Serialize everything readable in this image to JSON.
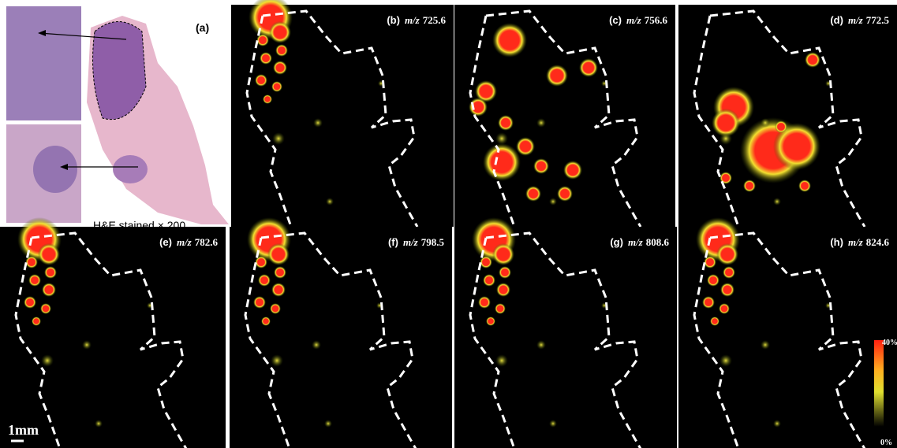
{
  "figure": {
    "panel_a": {
      "label": "(a)",
      "caption": "H&E stained  × 200"
    },
    "panels": [
      {
        "label": "(b)",
        "prefix": "m/z",
        "value": "725.6"
      },
      {
        "label": "(c)",
        "prefix": "m/z",
        "value": "756.6"
      },
      {
        "label": "(d)",
        "prefix": "m/z",
        "value": "772.5"
      },
      {
        "label": "(e)",
        "prefix": "m/z",
        "value": "782.6"
      },
      {
        "label": "(f)",
        "prefix": "m/z",
        "value": "798.5"
      },
      {
        "label": "(g)",
        "prefix": "m/z",
        "value": "808.6"
      },
      {
        "label": "(h)",
        "prefix": "m/z",
        "value": "824.6"
      }
    ],
    "scale_bar": "1mm",
    "colorbar": {
      "max_label": "40%",
      "min_label": "0%"
    }
  }
}
